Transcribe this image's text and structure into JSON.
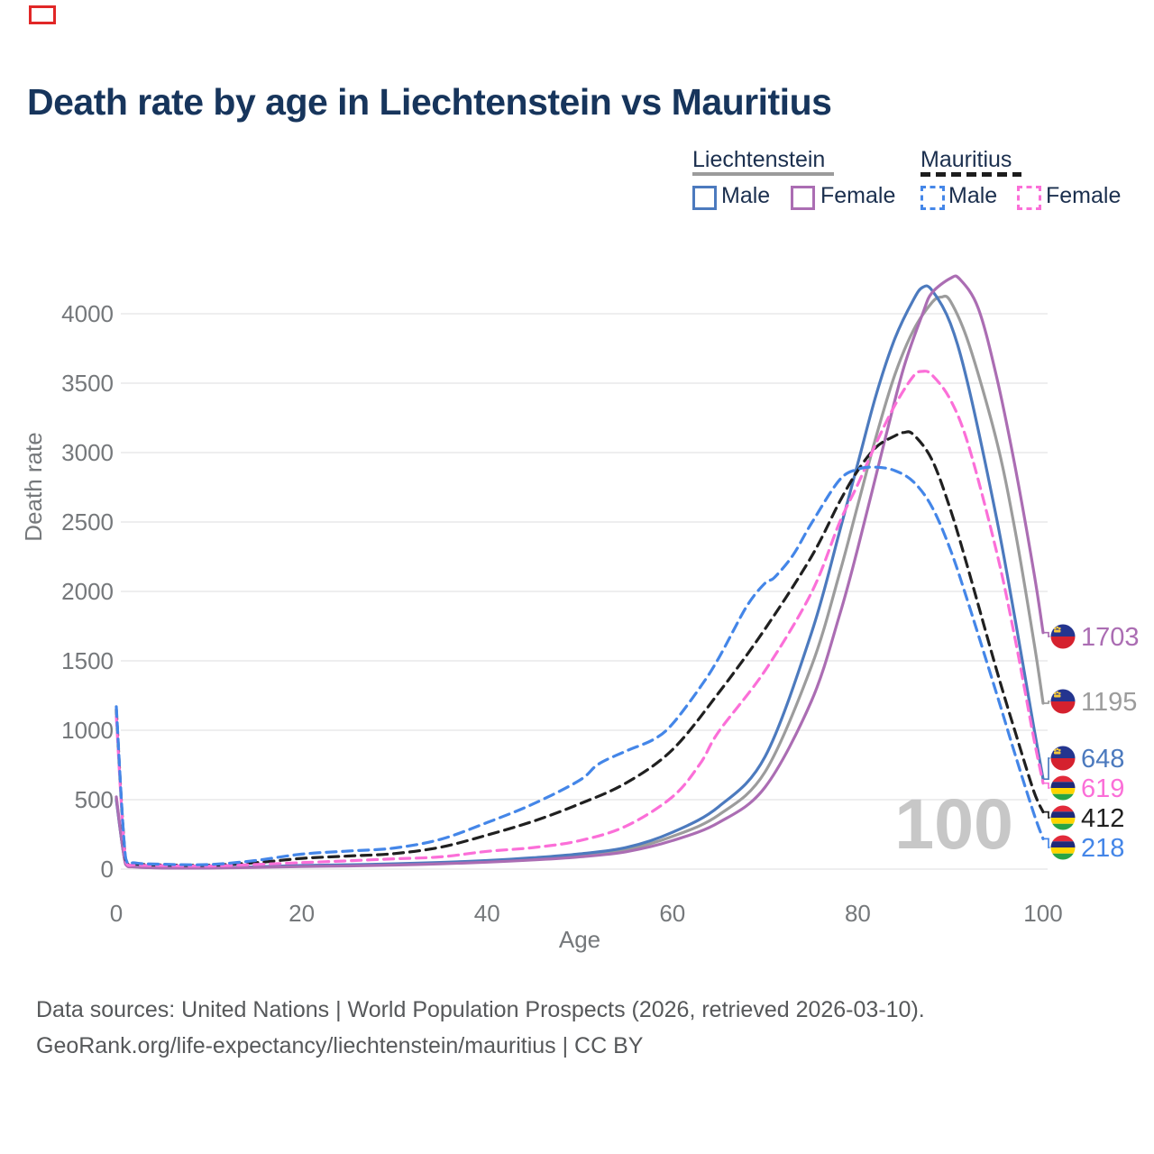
{
  "marker": {
    "color": "#e12727"
  },
  "title": {
    "text": "Death rate by age in Liechtenstein vs Mauritius",
    "color": "#17355c"
  },
  "legend": {
    "text_color": "#1b2f4e",
    "groups": [
      {
        "label": "Liechtenstein",
        "line_style": "solid",
        "underline_color": "#9b9b9b",
        "items": [
          {
            "label": "Male",
            "color": "#4c7abe",
            "dashed": false
          },
          {
            "label": "Female",
            "color": "#ab6db3",
            "dashed": false
          }
        ]
      },
      {
        "label": "Mauritius",
        "line_style": "dashed",
        "underline_color": "#1d1d1d",
        "items": [
          {
            "label": "Male",
            "color": "#4486e8",
            "dashed": true
          },
          {
            "label": "Female",
            "color": "#fb6fd8",
            "dashed": true
          }
        ]
      }
    ]
  },
  "watermark": {
    "text": "100",
    "color": "#c7c7c7"
  },
  "footer": {
    "line1": "Data sources: United Nations | World Population Prospects (2026, retrieved 2026-03-10).",
    "line2": "GeoRank.org/life-expectancy/liechtenstein/mauritius | CC BY",
    "color": "#56585a"
  },
  "chart_data": {
    "type": "line",
    "title": "Death rate by age in Liechtenstein vs Mauritius",
    "xlabel": "Age",
    "ylabel": "Death rate",
    "xlim": [
      0,
      100
    ],
    "ylim": [
      0,
      4300
    ],
    "x_ticks": [
      0,
      20,
      40,
      60,
      80,
      100
    ],
    "y_ticks": [
      0,
      500,
      1000,
      1500,
      2000,
      2500,
      3000,
      3500,
      4000
    ],
    "grid": "horizontal-only",
    "gridline_color": "#e8e8ea",
    "tick_label_color": "#75787b",
    "legend_position": "top-right",
    "series": [
      {
        "name": "Liechtenstein (both sexes)",
        "country": "Liechtenstein",
        "sex": "both",
        "color": "#9c9c9c",
        "dashed": false,
        "end_value": 1195,
        "points": [
          [
            0,
            510
          ],
          [
            1,
            38
          ],
          [
            2,
            16
          ],
          [
            5,
            9
          ],
          [
            10,
            9
          ],
          [
            15,
            14
          ],
          [
            20,
            22
          ],
          [
            25,
            27
          ],
          [
            30,
            33
          ],
          [
            35,
            43
          ],
          [
            40,
            56
          ],
          [
            45,
            74
          ],
          [
            50,
            100
          ],
          [
            55,
            140
          ],
          [
            60,
            235
          ],
          [
            65,
            390
          ],
          [
            70,
            700
          ],
          [
            75,
            1460
          ],
          [
            78,
            2120
          ],
          [
            80,
            2620
          ],
          [
            82,
            3120
          ],
          [
            84,
            3560
          ],
          [
            86,
            3880
          ],
          [
            88,
            4080
          ],
          [
            89,
            4120
          ],
          [
            90,
            4090
          ],
          [
            92,
            3780
          ],
          [
            95,
            3080
          ],
          [
            97,
            2430
          ],
          [
            99,
            1640
          ],
          [
            100,
            1195
          ]
        ]
      },
      {
        "name": "Liechtenstein Male",
        "country": "Liechtenstein",
        "sex": "male",
        "color": "#4c7abe",
        "dashed": false,
        "end_value": 648,
        "points": [
          [
            0,
            500
          ],
          [
            1,
            40
          ],
          [
            2,
            18
          ],
          [
            5,
            10
          ],
          [
            10,
            10
          ],
          [
            15,
            16
          ],
          [
            20,
            26
          ],
          [
            25,
            31
          ],
          [
            30,
            38
          ],
          [
            35,
            48
          ],
          [
            40,
            62
          ],
          [
            45,
            82
          ],
          [
            50,
            110
          ],
          [
            55,
            155
          ],
          [
            60,
            265
          ],
          [
            65,
            450
          ],
          [
            70,
            810
          ],
          [
            75,
            1700
          ],
          [
            78,
            2420
          ],
          [
            80,
            2920
          ],
          [
            82,
            3420
          ],
          [
            84,
            3820
          ],
          [
            86,
            4100
          ],
          [
            87,
            4190
          ],
          [
            88,
            4170
          ],
          [
            90,
            3930
          ],
          [
            92,
            3460
          ],
          [
            95,
            2520
          ],
          [
            97,
            1790
          ],
          [
            99,
            1020
          ],
          [
            100,
            648
          ]
        ]
      },
      {
        "name": "Liechtenstein Female",
        "country": "Liechtenstein",
        "sex": "female",
        "color": "#ab6db3",
        "dashed": false,
        "end_value": 1703,
        "points": [
          [
            0,
            520
          ],
          [
            1,
            35
          ],
          [
            2,
            15
          ],
          [
            5,
            8
          ],
          [
            10,
            8
          ],
          [
            15,
            12
          ],
          [
            20,
            19
          ],
          [
            25,
            23
          ],
          [
            30,
            29
          ],
          [
            35,
            38
          ],
          [
            40,
            50
          ],
          [
            45,
            66
          ],
          [
            50,
            88
          ],
          [
            55,
            125
          ],
          [
            60,
            205
          ],
          [
            65,
            335
          ],
          [
            70,
            590
          ],
          [
            75,
            1210
          ],
          [
            78,
            1820
          ],
          [
            80,
            2310
          ],
          [
            83,
            3110
          ],
          [
            85,
            3620
          ],
          [
            87,
            4000
          ],
          [
            88,
            4150
          ],
          [
            90,
            4255
          ],
          [
            91,
            4250
          ],
          [
            93,
            4040
          ],
          [
            95,
            3540
          ],
          [
            97,
            2890
          ],
          [
            99,
            2140
          ],
          [
            100,
            1703
          ]
        ]
      },
      {
        "name": "Mauritius (both sexes)",
        "country": "Mauritius",
        "sex": "both",
        "color": "#202020",
        "dashed": true,
        "end_value": 412,
        "points": [
          [
            0,
            1150
          ],
          [
            1,
            70
          ],
          [
            2,
            38
          ],
          [
            5,
            30
          ],
          [
            10,
            28
          ],
          [
            15,
            46
          ],
          [
            20,
            77
          ],
          [
            25,
            94
          ],
          [
            30,
            112
          ],
          [
            35,
            158
          ],
          [
            40,
            245
          ],
          [
            45,
            345
          ],
          [
            50,
            470
          ],
          [
            55,
            620
          ],
          [
            60,
            860
          ],
          [
            65,
            1270
          ],
          [
            70,
            1730
          ],
          [
            75,
            2250
          ],
          [
            78,
            2640
          ],
          [
            80,
            2870
          ],
          [
            82,
            3040
          ],
          [
            84,
            3120
          ],
          [
            85,
            3145
          ],
          [
            86,
            3130
          ],
          [
            88,
            2950
          ],
          [
            90,
            2590
          ],
          [
            92,
            2140
          ],
          [
            95,
            1430
          ],
          [
            97,
            985
          ],
          [
            99,
            560
          ],
          [
            100,
            412
          ]
        ]
      },
      {
        "name": "Mauritius Female",
        "country": "Mauritius",
        "sex": "female",
        "color": "#fb6fd8",
        "dashed": true,
        "end_value": 619,
        "points": [
          [
            0,
            1100
          ],
          [
            1,
            58
          ],
          [
            2,
            30
          ],
          [
            5,
            25
          ],
          [
            10,
            22
          ],
          [
            15,
            33
          ],
          [
            20,
            47
          ],
          [
            25,
            60
          ],
          [
            30,
            74
          ],
          [
            35,
            88
          ],
          [
            40,
            128
          ],
          [
            45,
            155
          ],
          [
            50,
            205
          ],
          [
            55,
            310
          ],
          [
            60,
            520
          ],
          [
            63,
            760
          ],
          [
            65,
            990
          ],
          [
            70,
            1430
          ],
          [
            75,
            1990
          ],
          [
            78,
            2490
          ],
          [
            80,
            2770
          ],
          [
            82,
            3070
          ],
          [
            84,
            3340
          ],
          [
            86,
            3550
          ],
          [
            87,
            3585
          ],
          [
            88,
            3560
          ],
          [
            90,
            3380
          ],
          [
            92,
            3040
          ],
          [
            95,
            2280
          ],
          [
            97,
            1650
          ],
          [
            99,
            940
          ],
          [
            100,
            619
          ]
        ]
      },
      {
        "name": "Mauritius Male",
        "country": "Mauritius",
        "sex": "male",
        "color": "#4486e8",
        "dashed": true,
        "end_value": 218,
        "points": [
          [
            0,
            1170
          ],
          [
            1,
            80
          ],
          [
            2,
            45
          ],
          [
            5,
            35
          ],
          [
            10,
            33
          ],
          [
            15,
            62
          ],
          [
            20,
            108
          ],
          [
            25,
            130
          ],
          [
            30,
            152
          ],
          [
            35,
            215
          ],
          [
            40,
            335
          ],
          [
            45,
            470
          ],
          [
            50,
            640
          ],
          [
            52,
            755
          ],
          [
            55,
            850
          ],
          [
            58,
            935
          ],
          [
            60,
            1045
          ],
          [
            63,
            1310
          ],
          [
            65,
            1520
          ],
          [
            68,
            1890
          ],
          [
            70,
            2060
          ],
          [
            71,
            2100
          ],
          [
            73,
            2260
          ],
          [
            75,
            2490
          ],
          [
            78,
            2800
          ],
          [
            80,
            2880
          ],
          [
            82,
            2895
          ],
          [
            84,
            2870
          ],
          [
            86,
            2790
          ],
          [
            88,
            2610
          ],
          [
            90,
            2300
          ],
          [
            92,
            1900
          ],
          [
            95,
            1260
          ],
          [
            97,
            820
          ],
          [
            99,
            400
          ],
          [
            100,
            218
          ]
        ]
      }
    ],
    "end_labels": [
      {
        "value": 1703,
        "country": "Liechtenstein",
        "color": "#ab6db3"
      },
      {
        "value": 1195,
        "country": "Liechtenstein",
        "color": "#9c9c9c"
      },
      {
        "value": 648,
        "country": "Liechtenstein",
        "color": "#4c7abe"
      },
      {
        "value": 619,
        "country": "Mauritius",
        "color": "#fb6fd8"
      },
      {
        "value": 412,
        "country": "Mauritius",
        "color": "#202020"
      },
      {
        "value": 218,
        "country": "Mauritius",
        "color": "#4486e8"
      }
    ],
    "flag_colors": {
      "liechtenstein": {
        "blue": "#24358f",
        "red": "#d5212e",
        "crown": "#f5c83c"
      },
      "mauritius": {
        "red": "#e22a3a",
        "blue": "#1f2a78",
        "yellow": "#ffd500",
        "green": "#28a445"
      }
    }
  }
}
